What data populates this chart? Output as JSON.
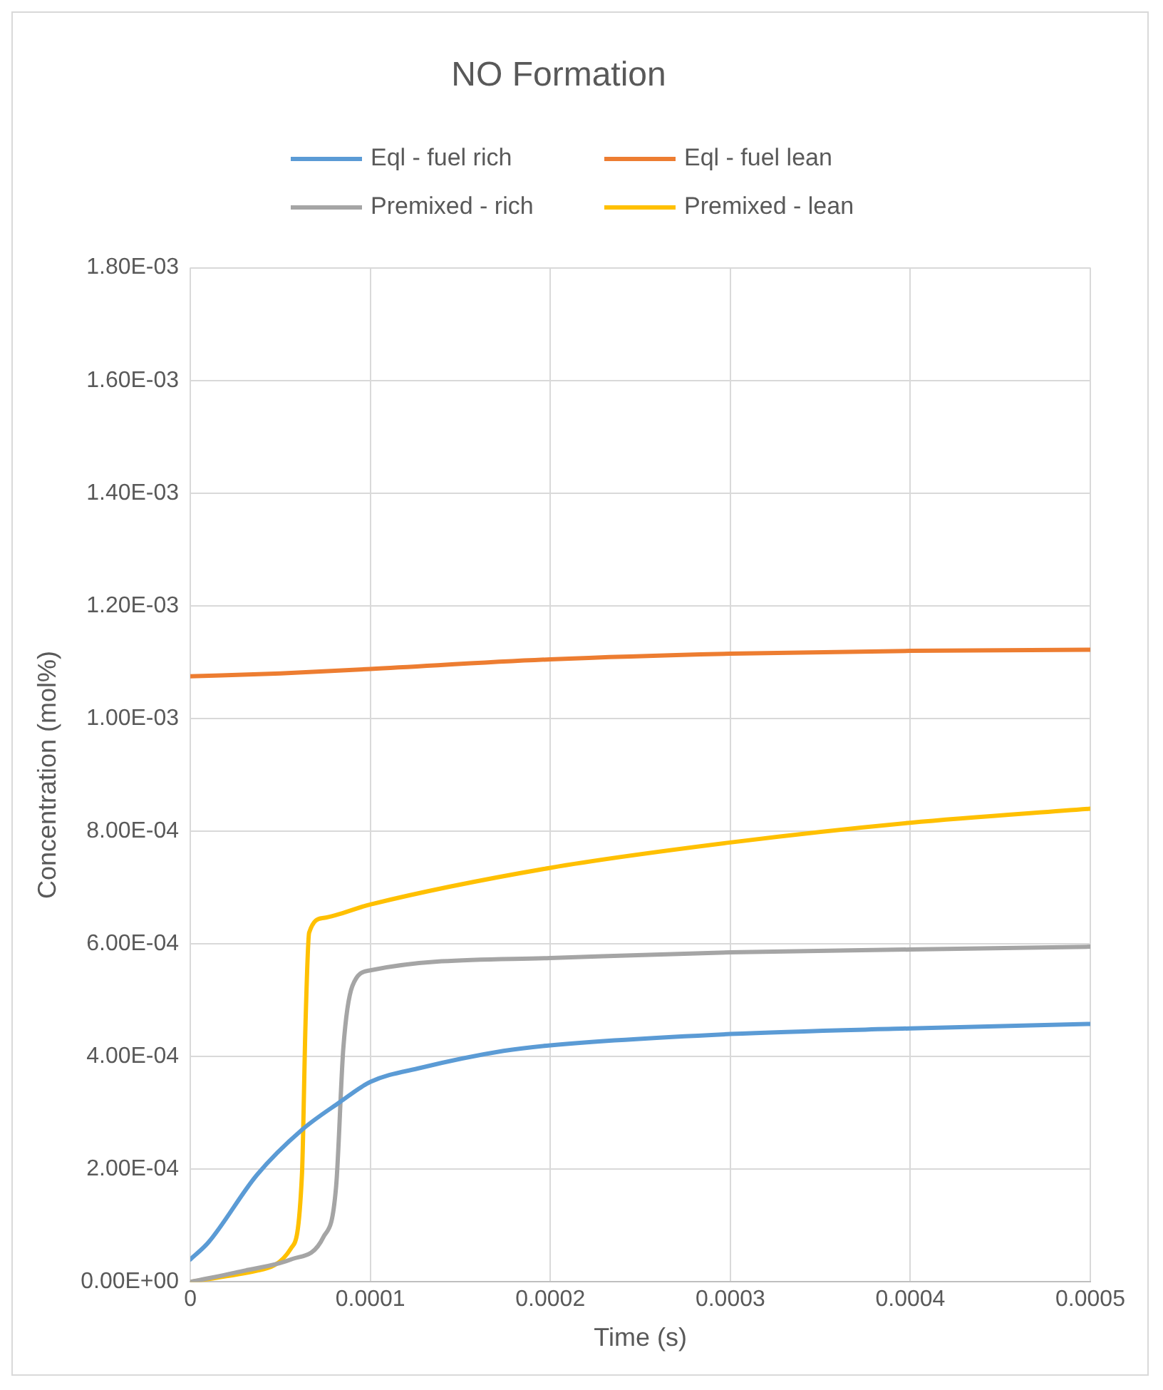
{
  "chart_data": {
    "type": "line",
    "title": "NO Formation",
    "xlabel": "Time (s)",
    "ylabel": "Concentration (mol%)",
    "legend": "top",
    "grid": true,
    "marker": "none",
    "line_style": "solid",
    "xlim": [
      0,
      0.0005
    ],
    "xticks": [
      0,
      0.0001,
      0.0002,
      0.0003,
      0.0004,
      0.0005
    ],
    "ylim": [
      0,
      0.0018
    ],
    "yticks": [
      {
        "value": 0,
        "label": "0.00E+00"
      },
      {
        "value": 0.0002,
        "label": "2.00E-04"
      },
      {
        "value": 0.0004,
        "label": "4.00E-04"
      },
      {
        "value": 0.0006,
        "label": "6.00E-04"
      },
      {
        "value": 0.0008,
        "label": "8.00E-04"
      },
      {
        "value": 0.001,
        "label": "1.00E-03"
      },
      {
        "value": 0.0012,
        "label": "1.20E-03"
      },
      {
        "value": 0.0014,
        "label": "1.40E-03"
      },
      {
        "value": 0.0016,
        "label": "1.60E-03"
      },
      {
        "value": 0.0018,
        "label": "1.80E-03"
      }
    ],
    "series": [
      {
        "name": "Eql - fuel rich",
        "color": "#5b9bd5",
        "x": [
          0,
          1e-05,
          3.7e-05,
          6.2e-05,
          8.3e-05,
          0.0001,
          0.000128,
          0.000174,
          0.0002,
          0.0003,
          0.0004,
          0.0005
        ],
        "values": [
          4e-05,
          7e-05,
          0.00019,
          0.00027,
          0.000319,
          0.000355,
          0.00038,
          0.00041,
          0.00042,
          0.00044,
          0.00045,
          0.000458
        ]
      },
      {
        "name": "Eql - fuel lean",
        "color": "#ed7d31",
        "x": [
          0,
          5e-05,
          0.0001,
          0.0002,
          0.0003,
          0.0004,
          0.0005
        ],
        "values": [
          0.001075,
          0.00108,
          0.001088,
          0.001105,
          0.001115,
          0.00112,
          0.001122
        ]
      },
      {
        "name": "Premixed - rich",
        "color": "#a5a5a5",
        "x": [
          0,
          3e-05,
          5.6e-05,
          7.4e-05,
          8.1e-05,
          8.5e-05,
          9e-05,
          0.0001,
          0.0002,
          0.0003,
          0.0004,
          0.0005
        ],
        "values": [
          0,
          2e-05,
          4e-05,
          8e-05,
          0.00017,
          0.000415,
          0.000525,
          0.000553,
          0.000575,
          0.000585,
          0.00059,
          0.000595
        ]
      },
      {
        "name": "Premixed - lean",
        "color": "#ffc000",
        "x": [
          0,
          3.7e-05,
          5.6e-05,
          6.2e-05,
          6.4e-05,
          6.6e-05,
          7.4e-05,
          0.0001,
          0.0002,
          0.0003,
          0.0004,
          0.0005
        ],
        "values": [
          0,
          2e-05,
          6e-05,
          0.00019,
          0.00046,
          0.00062,
          0.000646,
          0.00067,
          0.000735,
          0.00078,
          0.000815,
          0.00084
        ]
      }
    ]
  }
}
